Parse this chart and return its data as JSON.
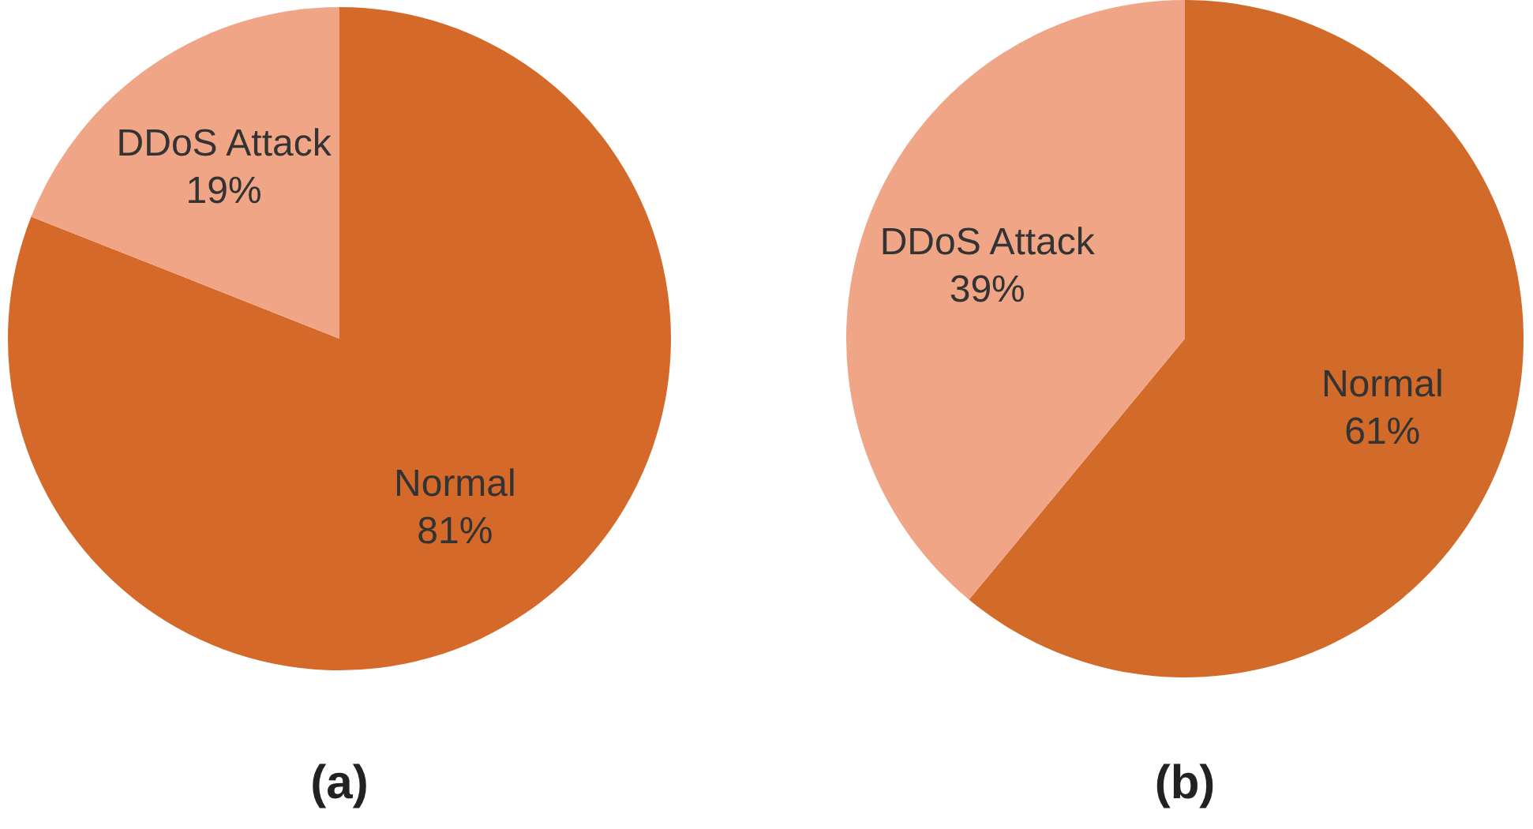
{
  "chart_data": [
    {
      "type": "pie",
      "title": "(a)",
      "categories": [
        "Normal",
        "DDoS Attack"
      ],
      "values": [
        81,
        19
      ],
      "colors": [
        "#d4692a",
        "#f0a686"
      ],
      "value_labels": [
        "81%",
        "19%"
      ],
      "legend": false
    },
    {
      "type": "pie",
      "title": "(b)",
      "categories": [
        "Normal",
        "DDoS Attack"
      ],
      "values": [
        61,
        39
      ],
      "colors": [
        "#d26a2a",
        "#f0a686"
      ],
      "value_labels": [
        "61%",
        "39%"
      ],
      "legend": false
    }
  ]
}
